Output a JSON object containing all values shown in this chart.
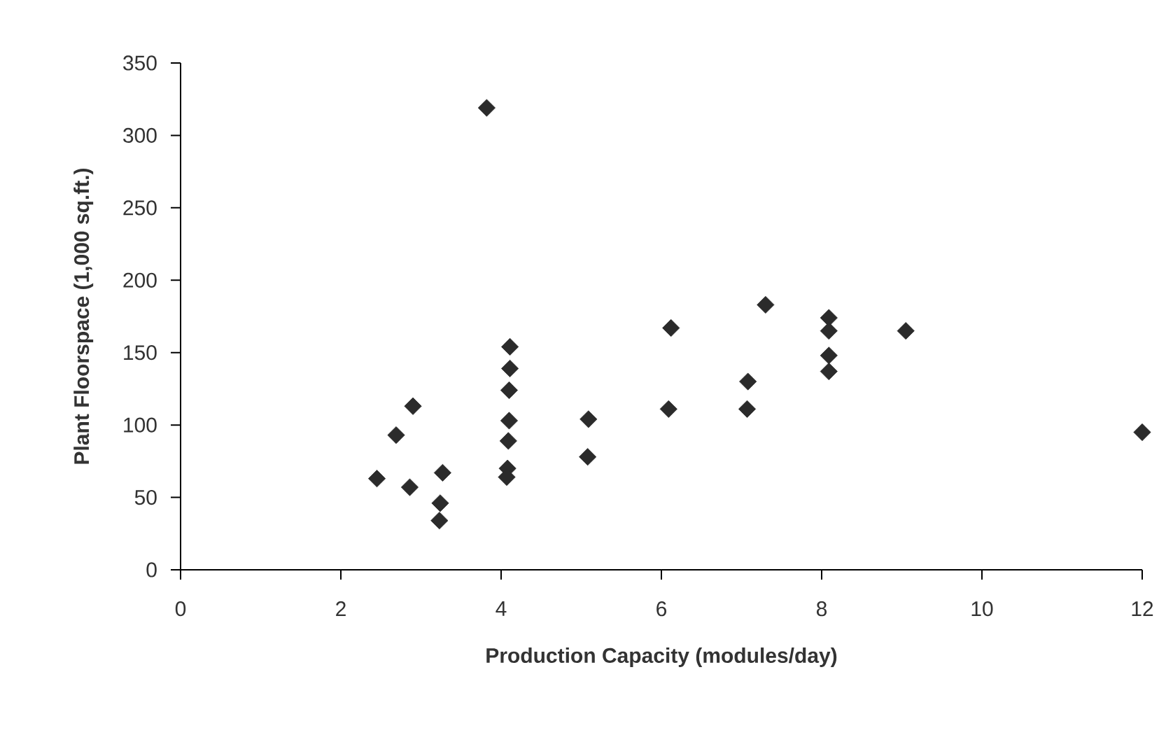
{
  "chart_data": {
    "type": "scatter",
    "xlabel": "Production Capacity  (modules/day)",
    "ylabel": "Plant Floorspace  (1,000 sq.ft.)",
    "x": [
      2.45,
      2.69,
      2.9,
      2.86,
      3.27,
      3.24,
      3.23,
      3.82,
      4.11,
      4.11,
      4.1,
      4.1,
      4.09,
      4.08,
      4.07,
      5.09,
      5.08,
      6.12,
      6.09,
      7.3,
      7.08,
      7.07,
      8.09,
      8.09,
      8.09,
      8.09,
      9.05,
      12.0
    ],
    "series": [
      {
        "color": "#2b2b2b",
        "values": [
          63,
          93,
          113,
          57,
          67,
          46,
          34,
          319,
          154,
          139,
          124,
          103,
          89,
          70,
          64,
          104,
          78,
          167,
          111,
          183,
          130,
          111,
          174,
          165,
          148,
          137,
          165,
          95
        ]
      }
    ],
    "xlim": [
      0,
      12
    ],
    "ylim": [
      0,
      350
    ],
    "xticks": [
      0,
      2,
      4,
      6,
      8,
      10,
      12
    ],
    "yticks": [
      0,
      50,
      100,
      150,
      200,
      250,
      300,
      350
    ],
    "grid": false,
    "marker": "diamond"
  }
}
